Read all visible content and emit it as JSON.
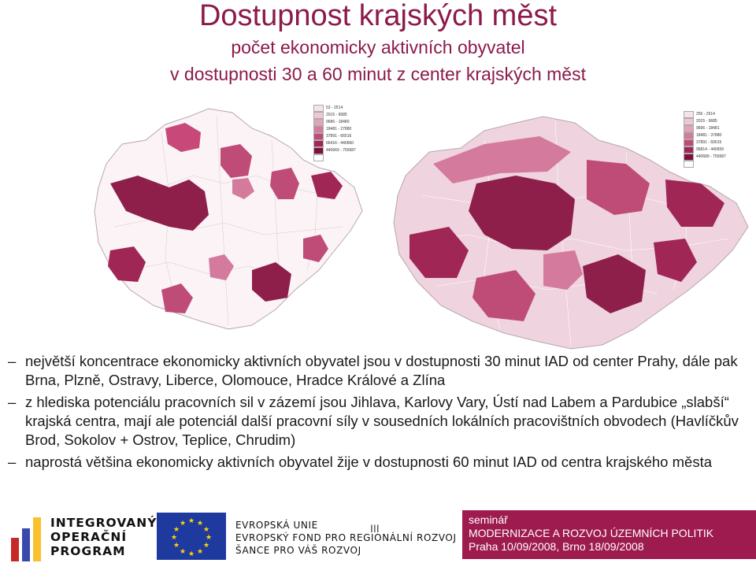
{
  "header": {
    "title": "Dostupnost krajských měst",
    "subtitle_line1": "počet ekonomicky aktivních obyvatel",
    "subtitle_line2": "v dostupnosti 30 a 60 minut z center krajských měst"
  },
  "maps": {
    "left": {
      "legend": [
        "53 - 2514",
        "2015 - 9685",
        "9686 - 18480",
        "18481 - 27880",
        "37891 - 66516",
        "66416 - 440660",
        "440669 - 755687",
        ""
      ],
      "legend_colors": [
        "#f6e3ea",
        "#eec7d5",
        "#e3a3bb",
        "#d47a9c",
        "#bf4c77",
        "#a02656",
        "#7d0f3b",
        "#ffffff"
      ]
    },
    "right": {
      "legend": [
        "256 - 2514",
        "2015 - 9685",
        "9696 - 18481",
        "18481 - 37880",
        "37891 - 69015",
        "96814 - 440659",
        "440689 - 755687",
        ""
      ],
      "legend_colors": [
        "#f6e3ea",
        "#eec7d5",
        "#e3a3bb",
        "#d47a9c",
        "#bf4c77",
        "#a02656",
        "#7d0f3b",
        "#ffffff"
      ]
    }
  },
  "bullets": [
    "největší koncentrace ekonomicky aktivních obyvatel jsou v dostupnosti 30 minut IAD od center Prahy, dále pak Brna, Plzně, Ostravy, Liberce, Olomouce, Hradce Králové a Zlína",
    "z hlediska potenciálu pracovních sil v zázemí jsou Jihlava, Karlovy Vary, Ústí nad Labem a Pardubice „slabší“ krajská centra, mají ale potenciál další pracovní síly v sousedních lokálních pracovištních obvodech (Havlíčkův Brod, Sokolov + Ostrov, Teplice, Chrudim)",
    "naprostá většina ekonomicky aktivních obyvatel žije v dostupnosti 60 minut IAD od centra krajského města"
  ],
  "bullet_marker": "–",
  "footer": {
    "iop_line1": "INTEGROVANÝ",
    "iop_line2": "OPERAČNÍ",
    "iop_line3": "PROGRAM",
    "eu_line1": "EVROPSKÁ UNIE",
    "eu_line2": "EVROPSKÝ FOND PRO REGIONÁLNÍ ROZVOJ",
    "eu_line3": "ŠANCE PRO VÁŠ ROZVOJ",
    "page_marker": "III",
    "seminar_line1": "seminář",
    "seminar_line2": "MODERNIZACE A ROZVOJ ÚZEMNÍCH POLITIK",
    "seminar_line3": "Praha 10/09/2008, Brno 18/09/2008",
    "seminar_color": "#9e1b4f",
    "iop_bar_colors": [
      "#c62828",
      "#3949ab",
      "#fbc02d"
    ]
  }
}
